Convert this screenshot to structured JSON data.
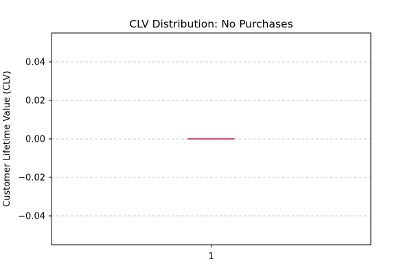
{
  "chart_data": {
    "type": "box",
    "title": "CLV Distribution: No Purchases",
    "xlabel": "",
    "ylabel": "Customer Lifetime Value (CLV)",
    "categories": [
      "1"
    ],
    "boxes": [
      {
        "category": "1",
        "min": 0.0,
        "q1": 0.0,
        "median": 0.0,
        "q3": 0.0,
        "max": 0.0,
        "outliers": []
      }
    ],
    "ylim": [
      -0.055,
      0.055
    ],
    "y_ticks": [
      -0.04,
      -0.02,
      0.0,
      0.02,
      0.04
    ],
    "y_tick_labels": [
      "−0.04",
      "−0.02",
      "0.00",
      "0.02",
      "0.04"
    ],
    "grid": {
      "y": true,
      "x": false,
      "style": "dashed"
    },
    "colors": {
      "grid": "#c8c8c8",
      "box_edge": "#4a6fb5",
      "median": "#c8325a",
      "axes": "#000000"
    }
  }
}
